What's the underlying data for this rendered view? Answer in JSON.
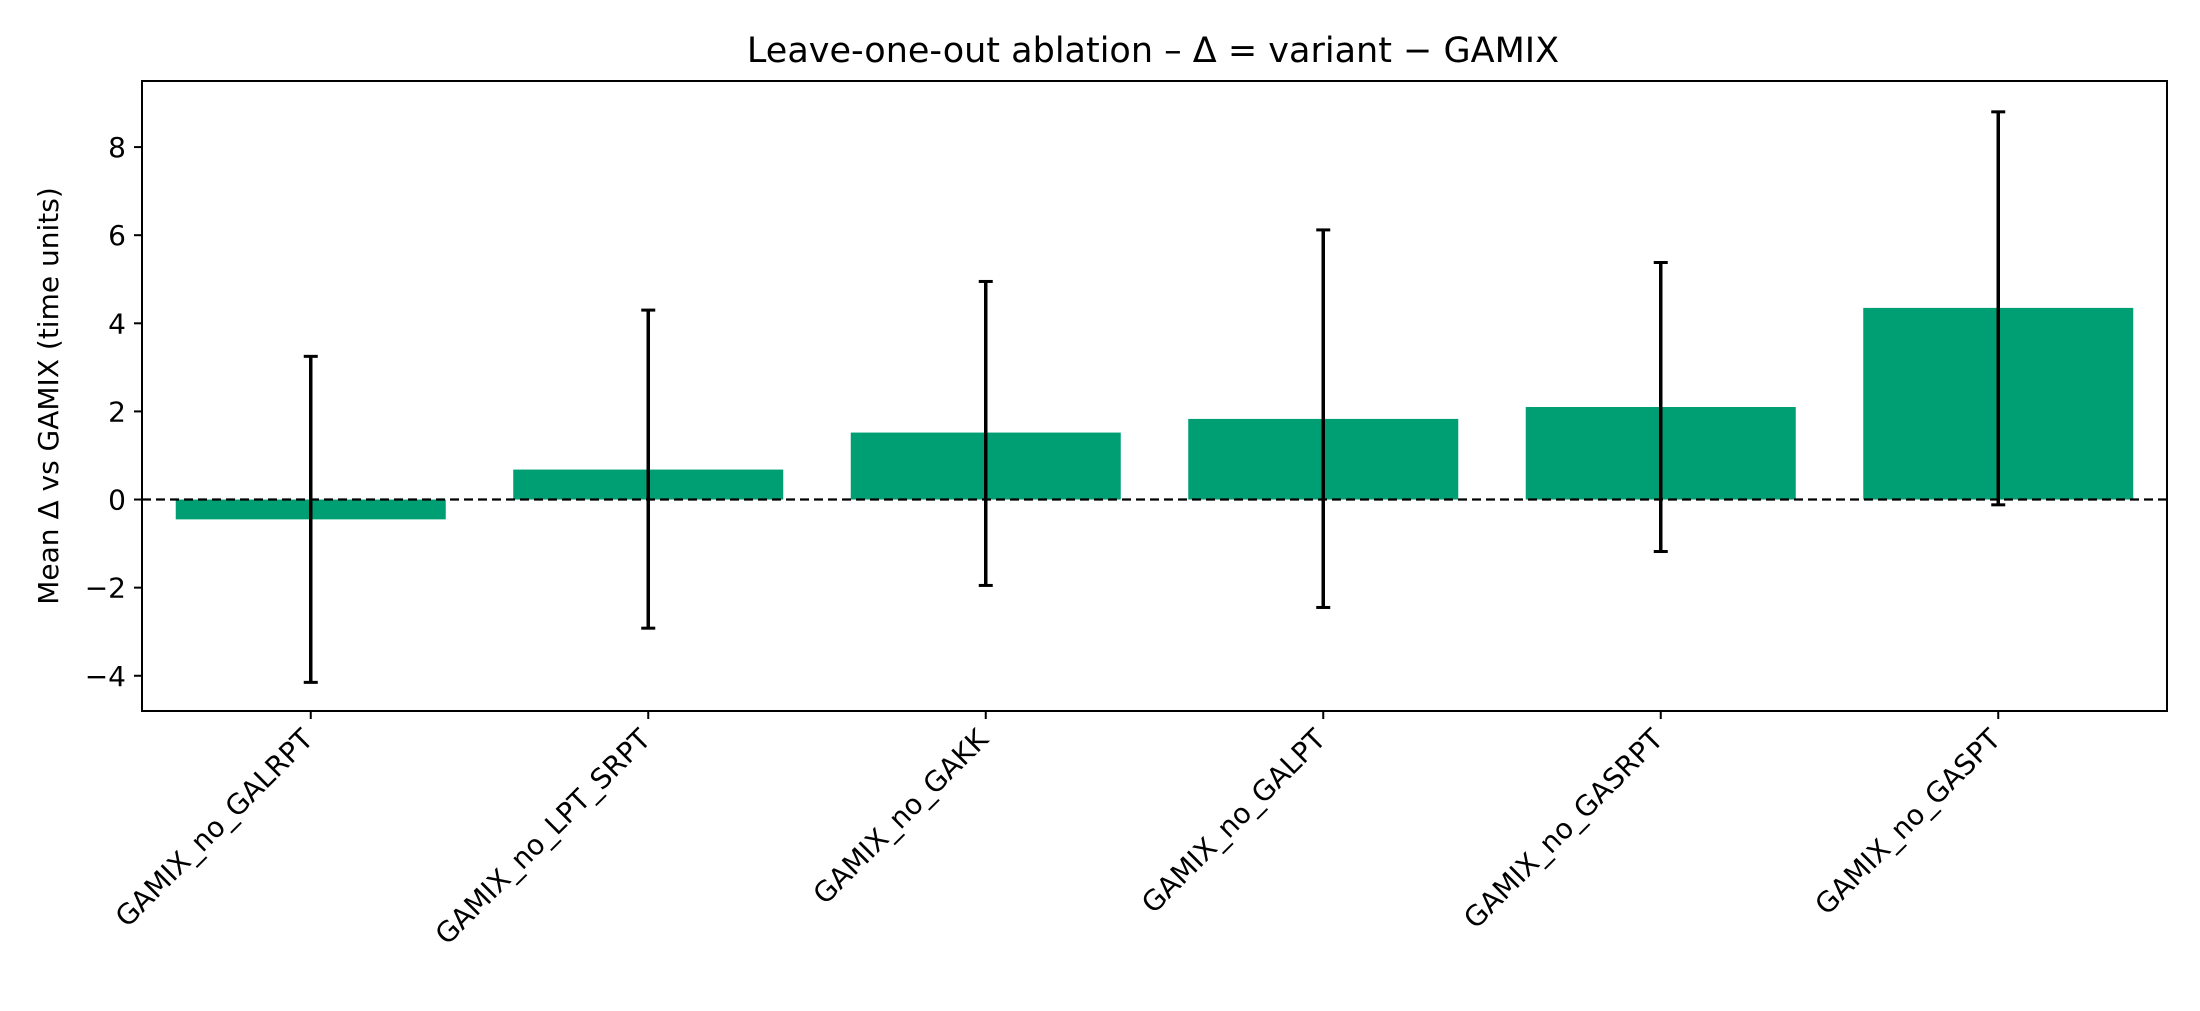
{
  "chart_data": {
    "type": "bar",
    "title": "Leave-one-out ablation – Δ = variant − GAMIX",
    "xlabel": "",
    "ylabel": "Mean Δ vs GAMIX (time units)",
    "categories": [
      "GAMIX_no_GALRPT",
      "GAMIX_no_LPT_SRPT",
      "GAMIX_no_GAKK",
      "GAMIX_no_GALPT",
      "GAMIX_no_GASRPT",
      "GAMIX_no_GASPT"
    ],
    "values": [
      -0.45,
      0.68,
      1.52,
      1.83,
      2.1,
      4.35
    ],
    "error_low": [
      -4.15,
      -2.92,
      -1.95,
      -2.45,
      -1.18,
      -0.12
    ],
    "error_high": [
      3.25,
      4.3,
      4.95,
      6.12,
      5.38,
      8.8
    ],
    "ylim": [
      -4.8,
      9.5
    ],
    "yticks": [
      -4,
      -2,
      0,
      2,
      4,
      6,
      8
    ],
    "ytick_labels": [
      "−4",
      "−2",
      "0",
      "2",
      "4",
      "6",
      "8"
    ],
    "reference_line": 0,
    "bar_color": "#009E73",
    "errorbar_color": "#000000",
    "grid": false,
    "legend": "none"
  }
}
